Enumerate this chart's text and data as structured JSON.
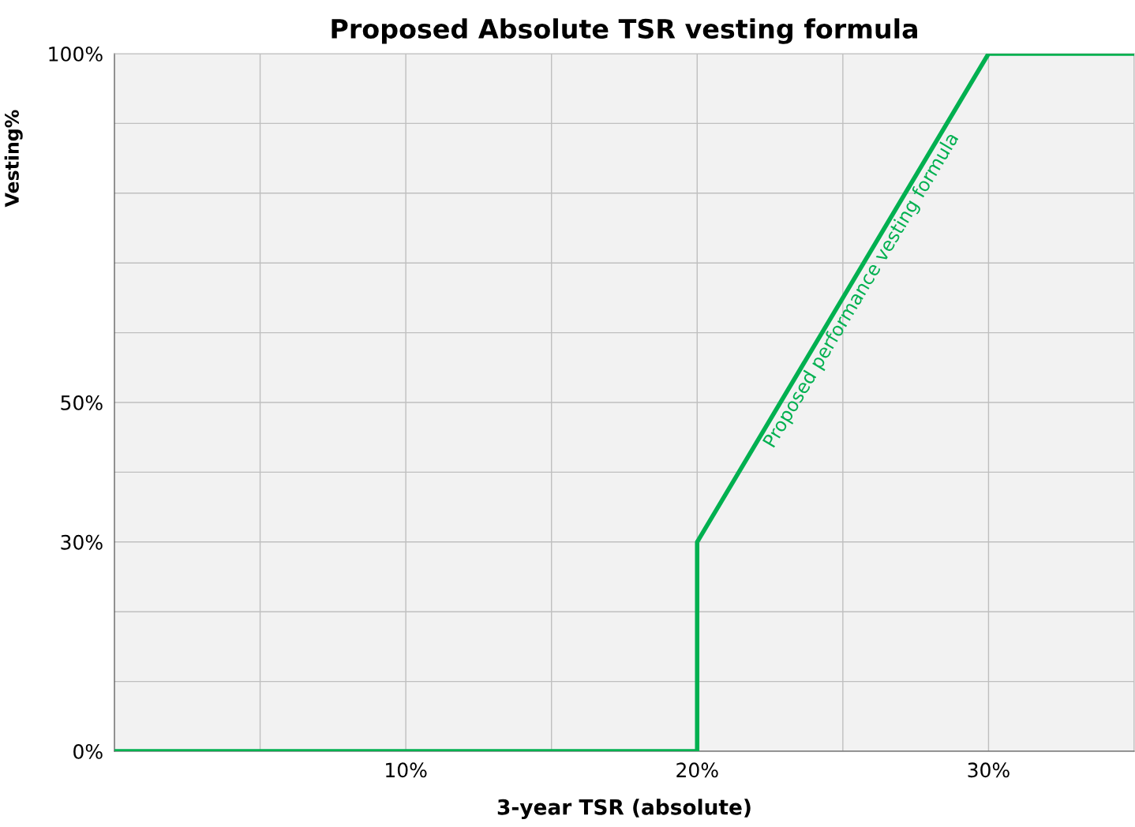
{
  "chart_data": {
    "type": "line",
    "title": "Proposed Absolute TSR vesting formula",
    "xlabel": "3-year TSR (absolute)",
    "ylabel": "Vesting%",
    "x": [
      0,
      20,
      20,
      30,
      35
    ],
    "series": [
      {
        "color": "#00b050",
        "values": [
          0,
          0,
          30,
          100,
          100
        ]
      }
    ],
    "xlim": [
      0,
      35
    ],
    "ylim": [
      0,
      100
    ],
    "xticks": [
      {
        "value": 5,
        "label": null
      },
      {
        "value": 10,
        "label": "10%"
      },
      {
        "value": 15,
        "label": null
      },
      {
        "value": 20,
        "label": "20%"
      },
      {
        "value": 25,
        "label": null
      },
      {
        "value": 30,
        "label": "30%"
      },
      {
        "value": 35,
        "label": null
      }
    ],
    "yticks": [
      {
        "value": 0,
        "label": "0%"
      },
      {
        "value": 10,
        "label": null
      },
      {
        "value": 20,
        "label": null
      },
      {
        "value": 30,
        "label": "30%"
      },
      {
        "value": 40,
        "label": null
      },
      {
        "value": 50,
        "label": "50%"
      },
      {
        "value": 60,
        "label": null
      },
      {
        "value": 70,
        "label": null
      },
      {
        "value": 80,
        "label": null
      },
      {
        "value": 90,
        "label": null
      },
      {
        "value": 100,
        "label": "100%"
      }
    ],
    "annotations": [
      "Proposed performance vesting formula"
    ],
    "grid": true,
    "marker": "none",
    "line_style": "solid"
  }
}
